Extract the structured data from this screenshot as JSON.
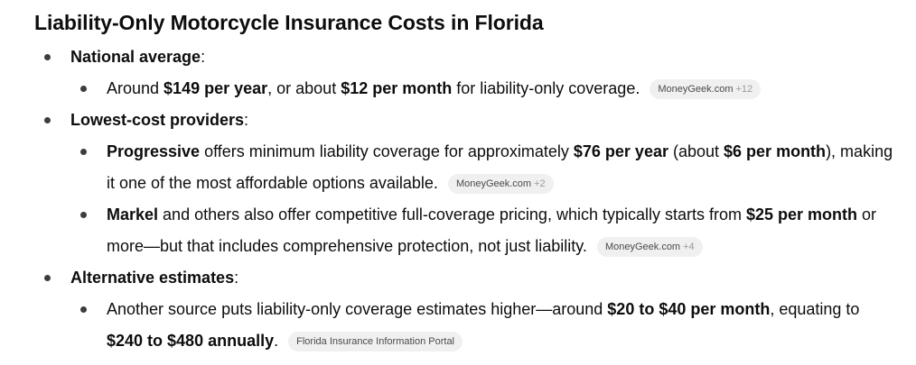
{
  "heading": "Liability-Only Motorcycle Insurance Costs in Florida",
  "sections": {
    "national": {
      "title": "National average",
      "colon": ":",
      "item": {
        "t1": "Around ",
        "b1": "$149 per year",
        "t2": ", or about ",
        "b2": "$12 per month",
        "t3": " for liability-only coverage.",
        "source": "MoneyGeek.com",
        "more": "+12"
      }
    },
    "lowest": {
      "title": "Lowest-cost providers",
      "colon": ":",
      "progressive": {
        "b1": "Progressive",
        "t1": " offers minimum liability coverage for approximately ",
        "b2": "$76 per year",
        "t2": " (about ",
        "b3": "$6 per month",
        "t3": "), making it one of the most affordable options available.",
        "source": "MoneyGeek.com",
        "more": "+2"
      },
      "markel": {
        "b1": "Markel",
        "t1": " and others also offer competitive full-coverage pricing, which typically starts from ",
        "b2": "$25 per month",
        "t2": " or more—but that includes comprehensive protection, not just liability.",
        "source": "MoneyGeek.com",
        "more": "+4"
      }
    },
    "alternative": {
      "title": "Alternative estimates",
      "colon": ":",
      "item": {
        "t1": "Another source puts liability-only coverage estimates higher—around ",
        "b1": "$20 to $40 per month",
        "t2": ", equating to ",
        "b2": "$240 to $480 annually",
        "t3": ".",
        "source": "Florida Insurance Information Portal"
      }
    }
  }
}
